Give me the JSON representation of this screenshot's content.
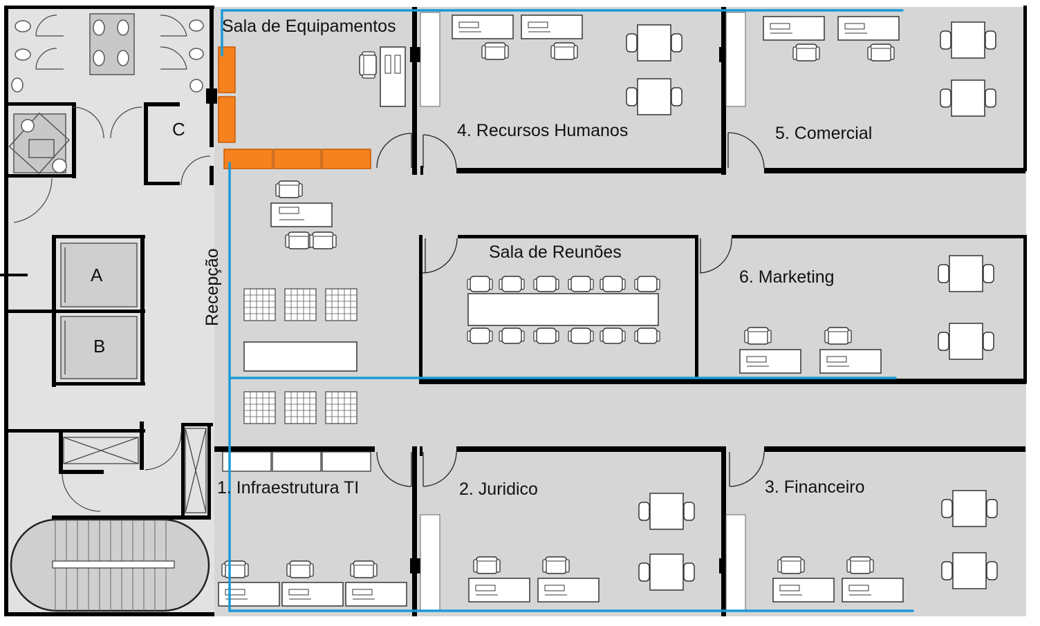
{
  "labels": {
    "sala_equipamentos": "Sala de Equipamentos",
    "recursos_humanos": "4. Recursos Humanos",
    "comercial": "5. Comercial",
    "sala_reunioes": "Sala de Reunões",
    "marketing": "6. Marketing",
    "recepcao": "Recepção",
    "infraestrutura": "1. Infraestrutura TI",
    "juridico": "2. Juridico",
    "financeiro": "3. Financeiro",
    "room_a": "A",
    "room_b": "B",
    "room_c": "C"
  },
  "colors": {
    "floor": "#d6d6d6",
    "wall": "#000000",
    "network_cable": "#1a9ad6",
    "equipment_rack": "#f5821f",
    "furniture": "#ffffff"
  }
}
